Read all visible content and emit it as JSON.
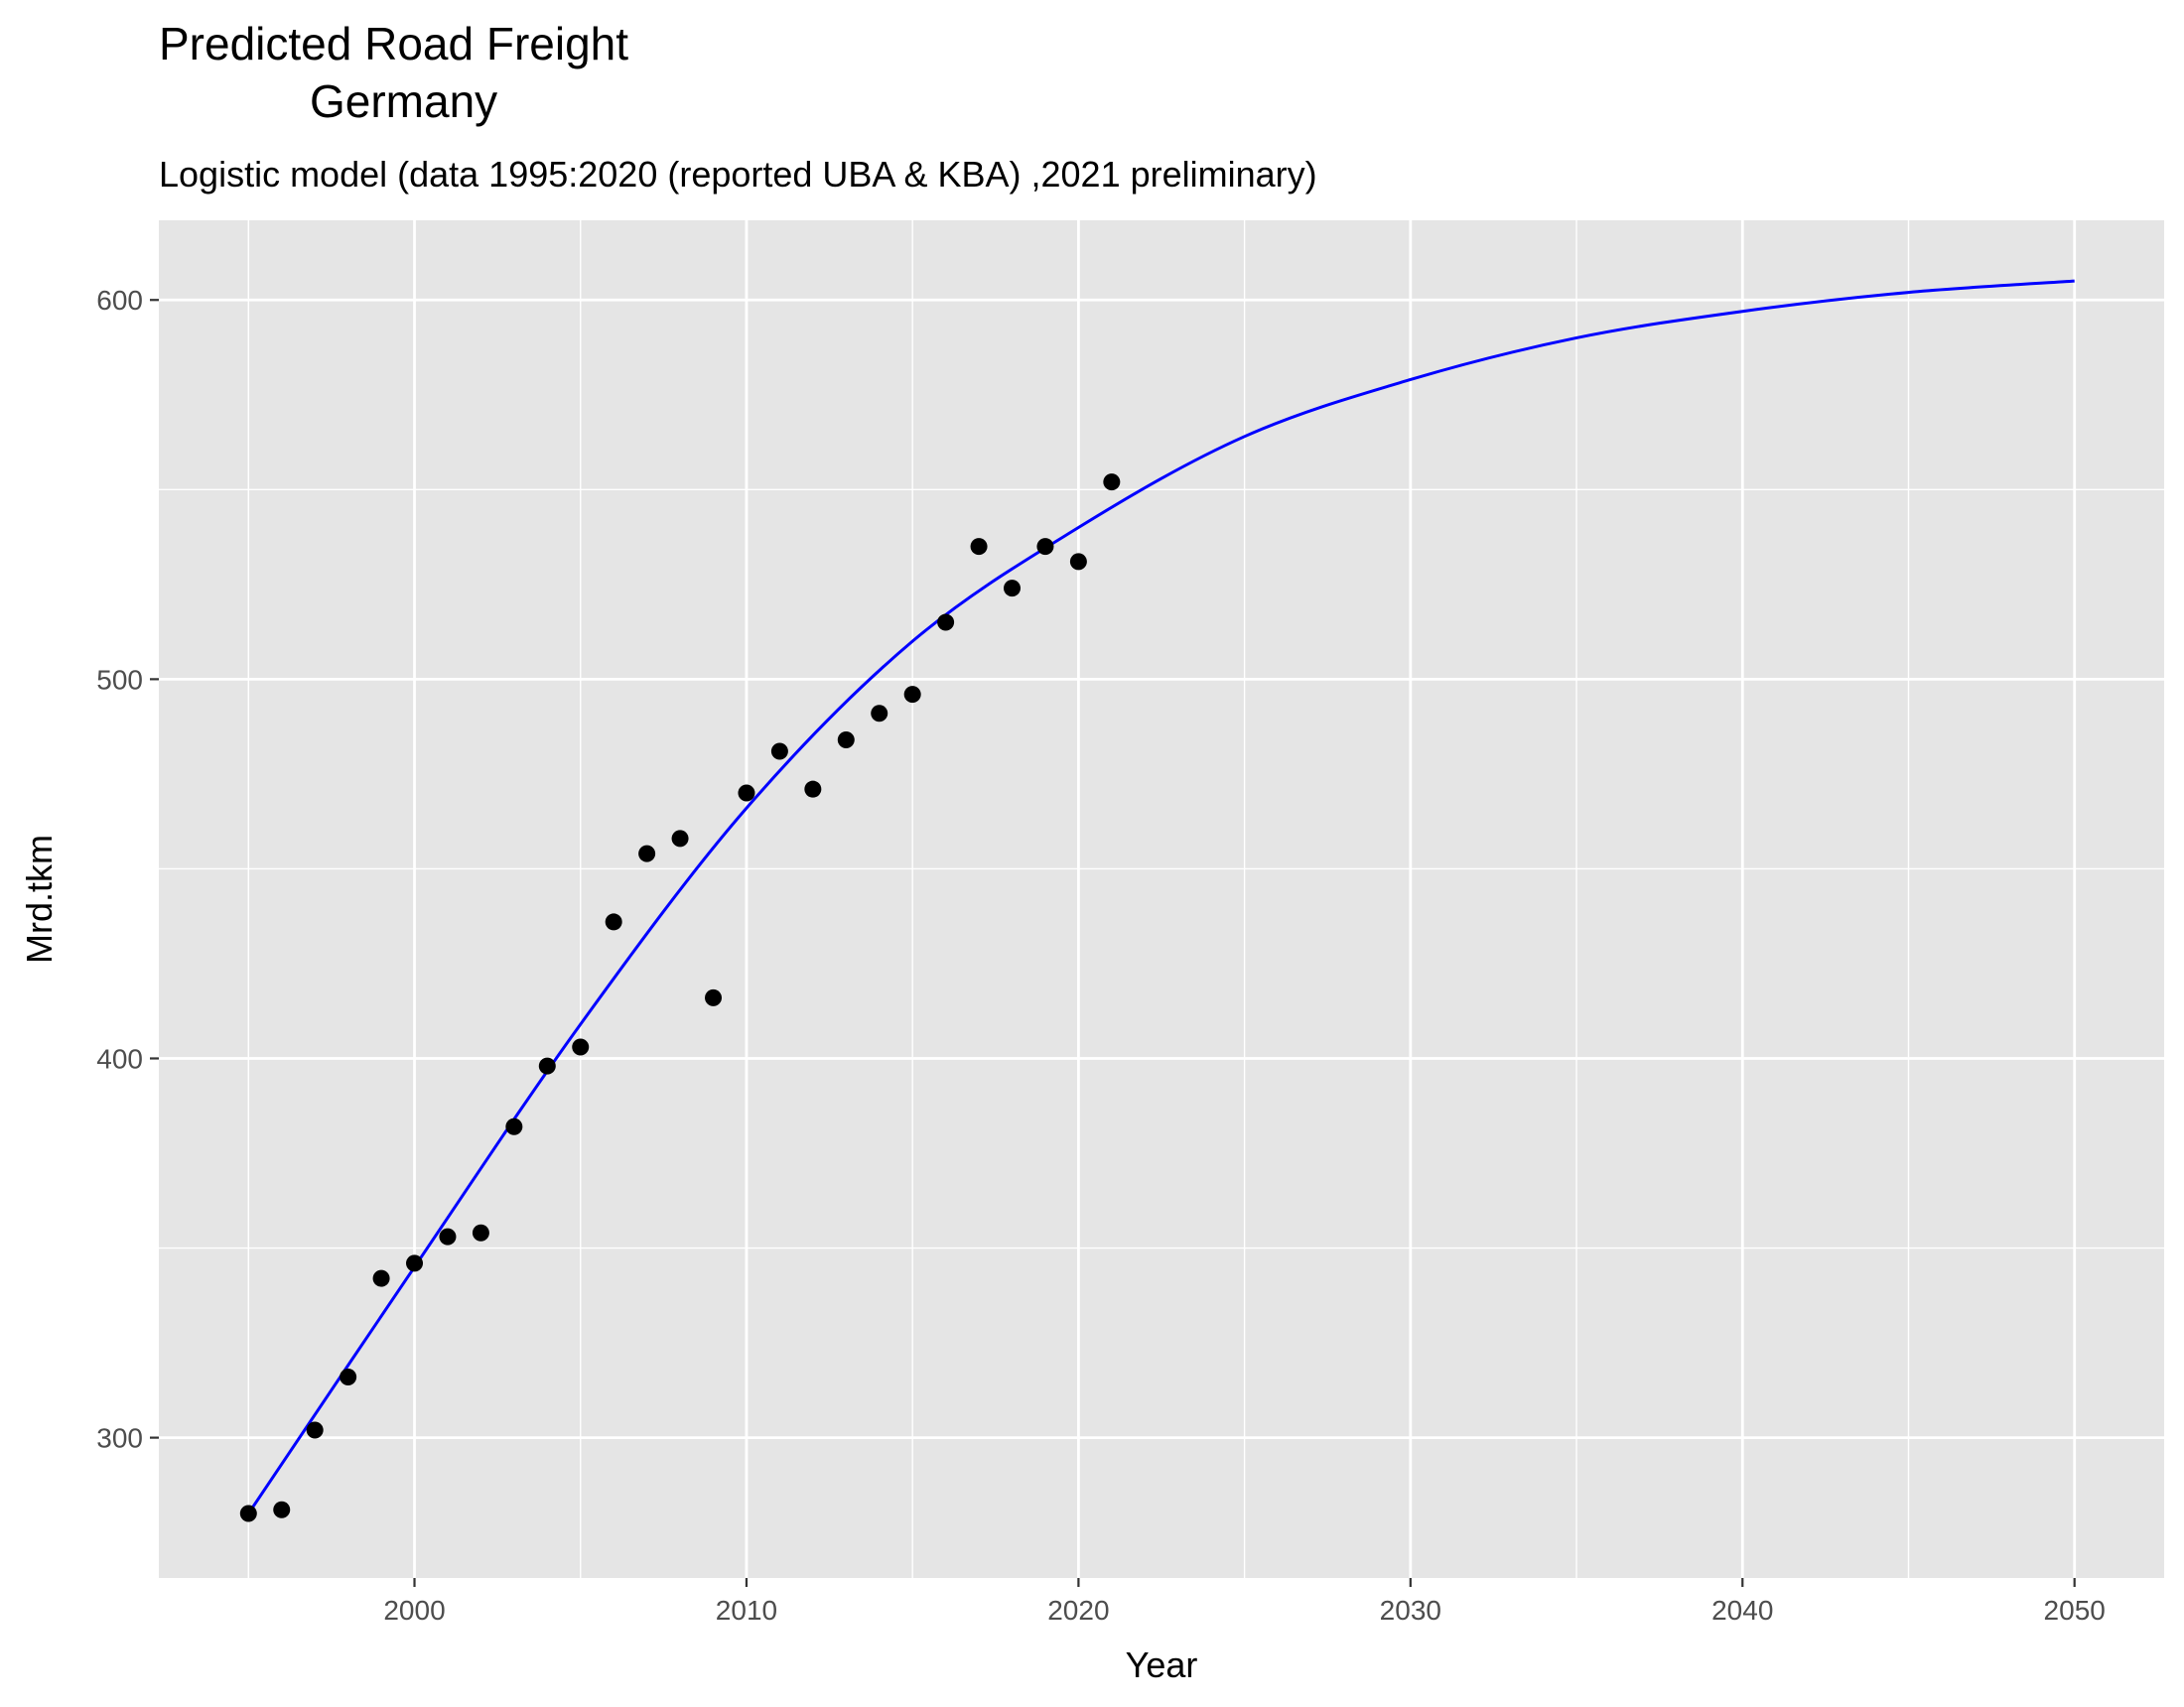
{
  "chart_data": {
    "type": "scatter",
    "title_line1": "Predicted Road Freight",
    "title_line2": "Germany",
    "subtitle": "Logistic model (data 1995:2020 (reported UBA & KBA)  ,2021 preliminary)",
    "xlabel": "Year",
    "ylabel": "Mrd.tkm",
    "xlim": [
      1992.3,
      2052.7
    ],
    "ylim": [
      263,
      621
    ],
    "x_ticks": [
      2000,
      2010,
      2020,
      2030,
      2040,
      2050
    ],
    "x_tick_labels": [
      "2000",
      "2010",
      "2020",
      "2030",
      "2040",
      "2050"
    ],
    "y_ticks": [
      300,
      400,
      500,
      600
    ],
    "y_tick_labels": [
      "300",
      "400",
      "500",
      "600"
    ],
    "grid": true,
    "legend": "none",
    "colors": {
      "panel": "#e5e5e5",
      "grid": "#ffffff",
      "points": "#000000",
      "line": "#0000ff"
    },
    "series": [
      {
        "kind": "points",
        "x": [
          1995,
          1996,
          1997,
          1998,
          1999,
          2000,
          2001,
          2002,
          2003,
          2004,
          2005,
          2006,
          2007,
          2008,
          2009,
          2010,
          2011,
          2012,
          2013,
          2014,
          2015,
          2016,
          2017,
          2018,
          2019,
          2020,
          2021
        ],
        "y": [
          280,
          281,
          302,
          316,
          342,
          346,
          353,
          354,
          382,
          398,
          403,
          436,
          454,
          458,
          416,
          470,
          481,
          471,
          484,
          491,
          496,
          515,
          535,
          524,
          535,
          531,
          552
        ]
      },
      {
        "kind": "line",
        "x": [
          1995,
          2000,
          2005,
          2010,
          2015,
          2020,
          2025,
          2030,
          2035,
          2040,
          2045,
          2050
        ],
        "y": [
          280,
          345,
          409,
          466,
          510,
          540,
          564,
          579,
          590,
          597,
          602,
          605
        ]
      }
    ]
  }
}
